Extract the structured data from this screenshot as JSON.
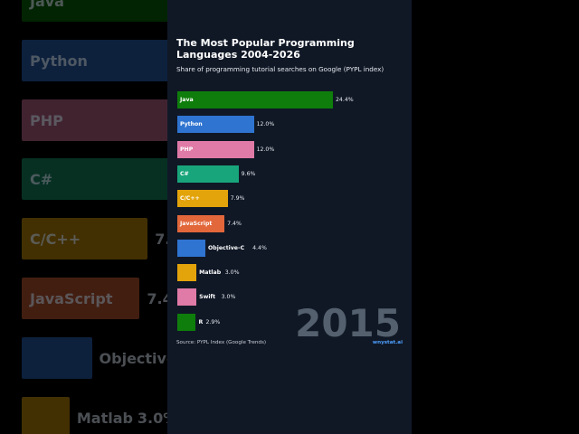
{
  "chart_data": {
    "type": "bar",
    "orientation": "horizontal",
    "title": "The Most Popular Programming Languages 2004-2026",
    "subtitle": "Share of programming tutorial searches on Google (PYPL index)",
    "categories": [
      "Java",
      "Python",
      "PHP",
      "C#",
      "C/C++",
      "JavaScript",
      "Objective-C",
      "Matlab",
      "Swift",
      "R"
    ],
    "values": [
      24.4,
      12.0,
      12.0,
      9.6,
      7.9,
      7.4,
      4.4,
      3.0,
      3.0,
      2.9
    ],
    "value_labels": [
      "24.4%",
      "12.0%",
      "12.0%",
      "9.6%",
      "7.9%",
      "7.4%",
      "4.4%",
      "3.0%",
      "3.0%",
      "2.9%"
    ],
    "colors": [
      "#0e7d0b",
      "#2f74d0",
      "#e07aa6",
      "#19a57b",
      "#e3a30a",
      "#e2673b",
      "#2f74d0",
      "#e3a30a",
      "#e07aa6",
      "#0e7d0b"
    ],
    "xlim": [
      0,
      24.4
    ],
    "year": "2015",
    "source": "Source: PYPL Index (Google Trends)",
    "brand": "wnystat.ai"
  }
}
